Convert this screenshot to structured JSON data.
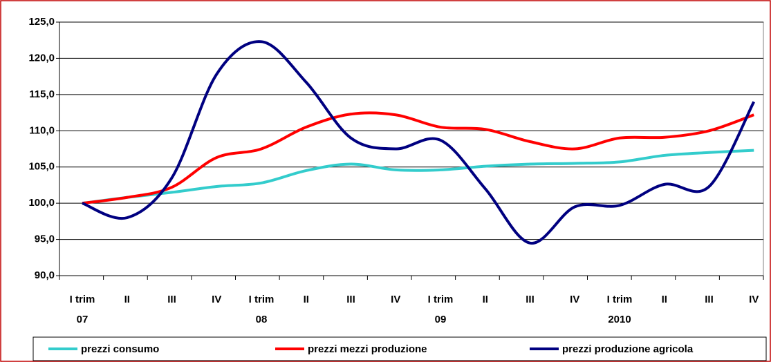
{
  "chart_data": {
    "type": "line",
    "categories": [
      "I trim",
      "II",
      "III",
      "IV",
      "I trim",
      "II",
      "III",
      "IV",
      "I trim",
      "II",
      "III",
      "IV",
      "I trim",
      "II",
      "III",
      "IV"
    ],
    "year_labels": [
      "07",
      "08",
      "09",
      "2010"
    ],
    "series": [
      {
        "name": "prezzi consumo",
        "color": "#33cccc",
        "values": [
          100.0,
          100.8,
          101.5,
          102.3,
          102.8,
          104.5,
          105.4,
          104.6,
          104.6,
          105.1,
          105.4,
          105.5,
          105.7,
          106.6,
          107.0,
          107.3
        ]
      },
      {
        "name": "prezzi mezzi produzione",
        "color": "#ff0000",
        "values": [
          100.0,
          100.8,
          102.2,
          106.3,
          107.5,
          110.5,
          112.3,
          112.2,
          110.5,
          110.2,
          108.5,
          107.5,
          109.0,
          109.1,
          110.0,
          112.2
        ]
      },
      {
        "name": "prezzi produzione agricola",
        "color": "#000080",
        "values": [
          100.0,
          98.0,
          103.5,
          117.8,
          122.3,
          116.7,
          109.0,
          107.5,
          108.7,
          102.0,
          94.5,
          99.5,
          99.7,
          102.6,
          102.3,
          114.0
        ]
      }
    ],
    "ylim": [
      90,
      125
    ],
    "yticks": [
      {
        "value": 90,
        "label": "90,0"
      },
      {
        "value": 95,
        "label": "95,0"
      },
      {
        "value": 100,
        "label": "100,0"
      },
      {
        "value": 105,
        "label": "105,0"
      },
      {
        "value": 110,
        "label": "110,0"
      },
      {
        "value": 115,
        "label": "115,0"
      },
      {
        "value": 120,
        "label": "120,0"
      },
      {
        "value": 125,
        "label": "125,0"
      }
    ],
    "grid": true
  }
}
